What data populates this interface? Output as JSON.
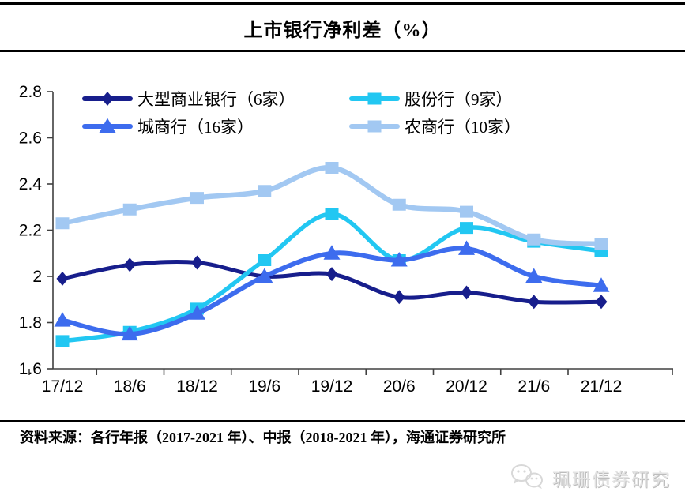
{
  "header": {
    "title": "上市银行净利差（%）"
  },
  "chart_data": {
    "type": "line",
    "title": "上市银行净利差（%）",
    "categories": [
      "17/12",
      "18/6",
      "18/12",
      "19/6",
      "19/12",
      "20/6",
      "20/12",
      "21/6",
      "21/12"
    ],
    "series": [
      {
        "name": "大型商业银行（6家）",
        "color": "#171E8C",
        "marker": "diamond",
        "values": [
          1.99,
          2.05,
          2.06,
          2.0,
          2.01,
          1.91,
          1.93,
          1.89,
          1.89
        ]
      },
      {
        "name": "股份行（9家）",
        "color": "#22C7F2",
        "marker": "square",
        "values": [
          1.72,
          1.76,
          1.86,
          2.07,
          2.27,
          2.07,
          2.21,
          2.15,
          2.11
        ]
      },
      {
        "name": "城商行（16家）",
        "color": "#3D6CEE",
        "marker": "triangle",
        "values": [
          1.81,
          1.75,
          1.84,
          2.0,
          2.1,
          2.07,
          2.12,
          2.0,
          1.96
        ]
      },
      {
        "name": "农商行（10家）",
        "color": "#A2C8F2",
        "marker": "square",
        "values": [
          2.23,
          2.29,
          2.34,
          2.37,
          2.47,
          2.31,
          2.28,
          2.16,
          2.14
        ]
      }
    ],
    "ylim": [
      1.6,
      2.8
    ],
    "yticks": [
      1.6,
      1.8,
      2.0,
      2.2,
      2.4,
      2.6,
      2.8
    ],
    "ytick_labels": [
      "1.6",
      "1.8",
      "2",
      "2.2",
      "2.4",
      "2.6",
      "2.8"
    ],
    "xlabel": "",
    "ylabel": "",
    "grid": false,
    "legend_position": "top-left-inside",
    "axis_color": "#404040"
  },
  "footer": {
    "source": "资料来源：各行年报（2017-2021 年）、中报（2018-2021 年），海通证券研究所"
  },
  "brand": {
    "text": "珮珊债券研究"
  }
}
